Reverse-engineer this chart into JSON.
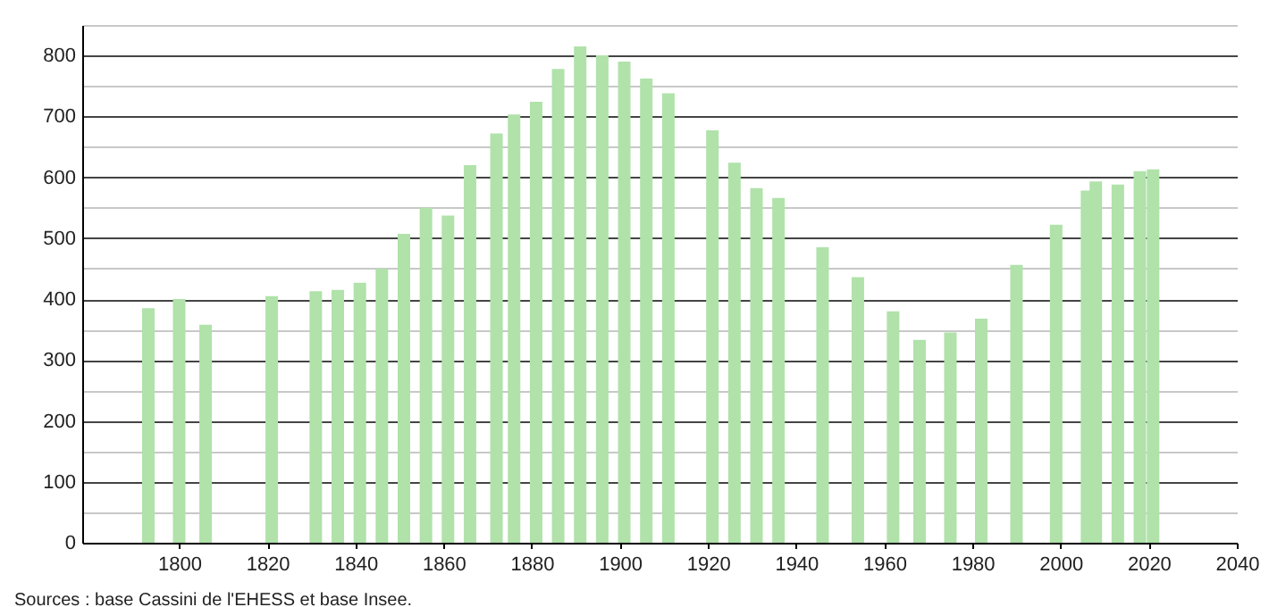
{
  "chart_data": {
    "type": "bar",
    "x": [
      1793,
      1800,
      1806,
      1821,
      1831,
      1836,
      1841,
      1846,
      1851,
      1856,
      1861,
      1866,
      1872,
      1876,
      1881,
      1886,
      1891,
      1896,
      1901,
      1906,
      1911,
      1921,
      1926,
      1931,
      1936,
      1946,
      1954,
      1962,
      1968,
      1975,
      1982,
      1990,
      1999,
      2006,
      2008,
      2013,
      2018,
      2021
    ],
    "values": [
      385,
      400,
      358,
      405,
      413,
      415,
      427,
      450,
      507,
      550,
      537,
      620,
      672,
      703,
      724,
      778,
      815,
      800,
      790,
      762,
      738,
      677,
      624,
      582,
      566,
      485,
      436,
      380,
      333,
      345,
      368,
      456,
      522,
      578,
      593,
      588,
      610,
      613
    ],
    "color": "#b0e2aa",
    "xlim": [
      1778,
      2040
    ],
    "xticks": [
      1800,
      1820,
      1840,
      1860,
      1880,
      1900,
      1920,
      1940,
      1960,
      1980,
      2000,
      2020,
      2040
    ],
    "ylim": [
      0,
      850
    ],
    "yticks": [
      0,
      {
        "value": 50,
        "label": null
      },
      100,
      {
        "value": 150,
        "label": null
      },
      200,
      {
        "value": 250,
        "label": null
      },
      300,
      {
        "value": 350,
        "label": null
      },
      400,
      {
        "value": 450,
        "label": null
      },
      500,
      {
        "value": 550,
        "label": null
      },
      600,
      {
        "value": 650,
        "label": null
      },
      700,
      {
        "value": 750,
        "label": null
      },
      800,
      {
        "value": 850,
        "label": null
      }
    ],
    "grid": "y",
    "annotations": [
      "Sources : base Cassini de l'EHESS et base Insee."
    ]
  }
}
